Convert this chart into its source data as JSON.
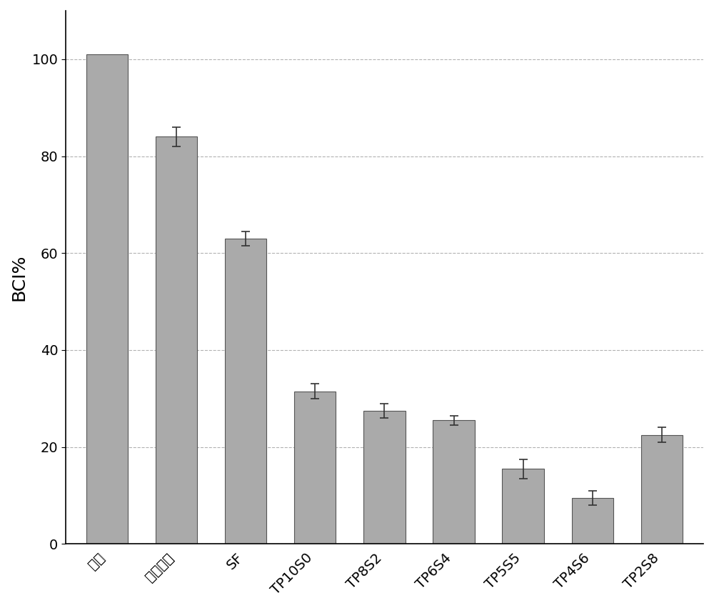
{
  "categories": [
    "空白",
    "明胶海绵",
    "SF",
    "TP10S0",
    "TP8S2",
    "TP6S4",
    "TP5S5",
    "TP4S6",
    "TP2S8"
  ],
  "values": [
    101.0,
    84.0,
    63.0,
    31.5,
    27.5,
    25.5,
    15.5,
    9.5,
    22.5
  ],
  "errors": [
    0.0,
    2.0,
    1.5,
    1.5,
    1.5,
    1.0,
    2.0,
    1.5,
    1.5
  ],
  "bar_color": "#aaaaaa",
  "bar_edgecolor": "#555555",
  "ylabel": "BCI%",
  "ylim": [
    0,
    110
  ],
  "yticks": [
    0,
    20,
    40,
    60,
    80,
    100
  ],
  "grid_color": "#aaaaaa",
  "grid_linestyle": "--",
  "background_color": "#ffffff",
  "bar_width": 0.6,
  "ylabel_fontsize": 18,
  "tick_fontsize": 14,
  "xtick_fontsize": 14
}
